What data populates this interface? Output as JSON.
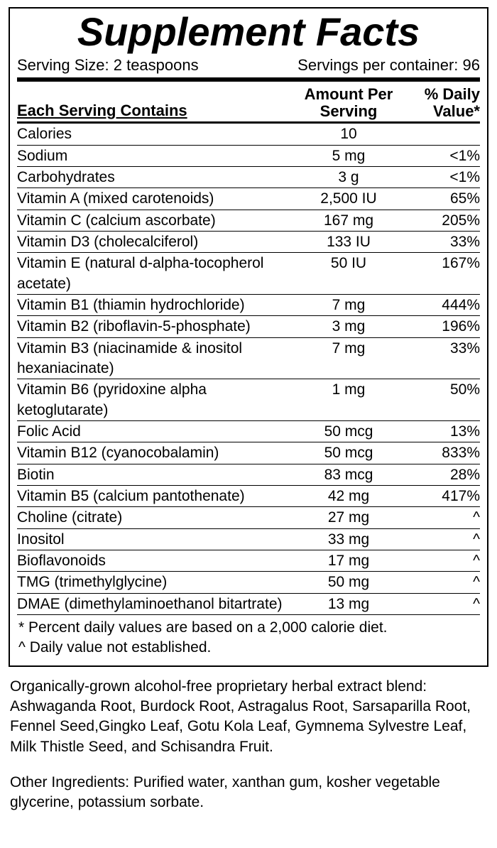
{
  "title": "Supplement Facts",
  "serving_size_label": "Serving Size: 2 teaspoons",
  "servings_per_container_label": "Servings per container: 96",
  "header": {
    "each_serving": "Each Serving Contains",
    "amount_line1": "Amount Per",
    "amount_line2": "Serving",
    "dv_line1": "% Daily",
    "dv_line2": "Value*"
  },
  "rows": [
    {
      "name": "Calories",
      "amount": "10",
      "dv": ""
    },
    {
      "name": "Sodium",
      "amount": "5 mg",
      "dv": "<1%"
    },
    {
      "name": "Carbohydrates",
      "amount": "3 g",
      "dv": "<1%"
    },
    {
      "name": "Vitamin A (mixed carotenoids)",
      "amount": "2,500 IU",
      "dv": "65%"
    },
    {
      "name": "Vitamin C (calcium ascorbate)",
      "amount": "167 mg",
      "dv": "205%"
    },
    {
      "name": "Vitamin D3 (cholecalciferol)",
      "amount": "133 IU",
      "dv": "33%"
    },
    {
      "name": "Vitamin E (natural d-alpha-tocopherol acetate)",
      "amount": "50 IU",
      "dv": "167%"
    },
    {
      "name": "Vitamin B1 (thiamin hydrochloride)",
      "amount": "7 mg",
      "dv": "444%"
    },
    {
      "name": "Vitamin B2 (riboflavin-5-phosphate)",
      "amount": "3 mg",
      "dv": "196%"
    },
    {
      "name": "Vitamin B3 (niacinamide & inositol hexaniacinate)",
      "amount": "7 mg",
      "dv": "33%"
    },
    {
      "name": "Vitamin B6 (pyridoxine alpha ketoglutarate)",
      "amount": "1 mg",
      "dv": "50%"
    },
    {
      "name": "Folic Acid",
      "amount": "50 mcg",
      "dv": "13%"
    },
    {
      "name": "Vitamin B12 (cyanocobalamin)",
      "amount": "50 mcg",
      "dv": "833%"
    },
    {
      "name": "Biotin",
      "amount": "83 mcg",
      "dv": "28%"
    },
    {
      "name": "Vitamin B5 (calcium pantothenate)",
      "amount": "42 mg",
      "dv": "417%"
    },
    {
      "name": "Choline (citrate)",
      "amount": "27 mg",
      "dv": "^"
    },
    {
      "name": "Inositol",
      "amount": "33 mg",
      "dv": "^"
    },
    {
      "name": "Bioflavonoids",
      "amount": "17 mg",
      "dv": "^"
    },
    {
      "name": "TMG (trimethylglycine)",
      "amount": "50 mg",
      "dv": "^"
    },
    {
      "name": "DMAE (dimethylaminoethanol bitartrate)",
      "amount": "13 mg",
      "dv": "^"
    }
  ],
  "footnote_star": "* Percent daily values are based on a 2,000 calorie diet.",
  "footnote_caret": "^  Daily value not established.",
  "blend_text": "Organically-grown alcohol-free proprietary herbal extract blend: Ashwaganda Root, Burdock Root, Astragalus Root, Sarsaparilla Root, Fennel Seed,Gingko Leaf, Gotu Kola Leaf, Gymnema Sylvestre Leaf, Milk Thistle Seed, and Schisandra Fruit.",
  "other_ingredients": "Other Ingredients:  Purified water, xanthan gum, kosher vegetable glycerine, potassium sorbate.",
  "colors": {
    "text": "#000000",
    "bg": "#ffffff",
    "rule": "#000000"
  }
}
